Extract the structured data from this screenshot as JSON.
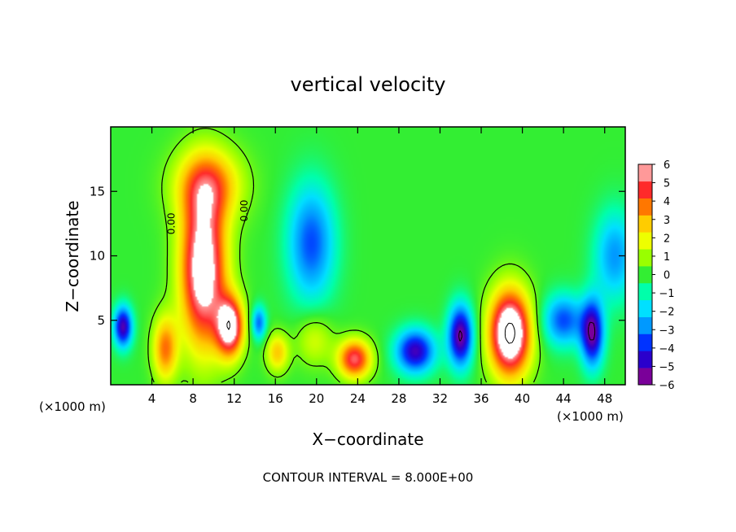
{
  "chart_data": {
    "type": "heatmap",
    "title": "vertical velocity",
    "xlabel": "X−coordinate",
    "ylabel": "Z−coordinate",
    "x_unit_left": "(×1000 m)",
    "x_unit_right": "(×1000 m)",
    "xlim": [
      0,
      50
    ],
    "ylim": [
      0,
      20
    ],
    "x_ticks": [
      4,
      8,
      12,
      16,
      20,
      24,
      28,
      32,
      36,
      40,
      44,
      48
    ],
    "y_ticks": [
      5,
      10,
      15
    ],
    "colorbar": {
      "min": -6,
      "max": 6,
      "ticks": [
        6,
        5,
        4,
        3,
        2,
        1,
        0,
        -1,
        -2,
        -3,
        -4,
        -5,
        -6
      ],
      "tick_labels": [
        "6",
        "5",
        "4",
        "3",
        "2",
        "1",
        "0",
        "−1",
        "−2",
        "−3",
        "−4",
        "−5",
        "−6"
      ],
      "colors": [
        "#7a0099",
        "#2a00cc",
        "#0033ff",
        "#0099ff",
        "#00e0ff",
        "#00ffaa",
        "#33ee33",
        "#99ff00",
        "#eeff00",
        "#ffcc00",
        "#ff7700",
        "#ff2a2a",
        "#ff9999"
      ]
    },
    "contour_label": "0.00",
    "features": [
      {
        "x": 1.2,
        "z": 4.5,
        "sx": 0.9,
        "sz": 1.6,
        "value": -5.5
      },
      {
        "x": 5.3,
        "z": 2.8,
        "sx": 1.2,
        "sz": 2.5,
        "value": 4.0
      },
      {
        "x": 9.0,
        "z": 9.0,
        "sx": 2.2,
        "sz": 6.0,
        "value": 7.5
      },
      {
        "x": 9.5,
        "z": 15.5,
        "sx": 3.2,
        "sz": 2.8,
        "value": 3.8
      },
      {
        "x": 11.6,
        "z": 4.5,
        "sx": 1.3,
        "sz": 2.3,
        "value": 7.0
      },
      {
        "x": 14.4,
        "z": 4.8,
        "sx": 0.7,
        "sz": 1.3,
        "value": -3.5
      },
      {
        "x": 16.2,
        "z": 2.5,
        "sx": 1.1,
        "sz": 1.5,
        "value": 3.0
      },
      {
        "x": 19.5,
        "z": 11.0,
        "sx": 2.3,
        "sz": 4.5,
        "value": -3.8
      },
      {
        "x": 19.8,
        "z": 3.5,
        "sx": 1.8,
        "sz": 2.0,
        "value": 1.8
      },
      {
        "x": 23.7,
        "z": 2.0,
        "sx": 1.6,
        "sz": 1.5,
        "value": 5.5
      },
      {
        "x": 29.6,
        "z": 2.6,
        "sx": 1.9,
        "sz": 1.7,
        "value": -5.3
      },
      {
        "x": 34.0,
        "z": 3.8,
        "sx": 1.2,
        "sz": 2.4,
        "value": -6.0
      },
      {
        "x": 38.8,
        "z": 4.0,
        "sx": 2.0,
        "sz": 3.3,
        "value": 8.5
      },
      {
        "x": 44.0,
        "z": 5.0,
        "sx": 2.0,
        "sz": 2.0,
        "value": -3.8
      },
      {
        "x": 46.8,
        "z": 4.0,
        "sx": 1.1,
        "sz": 2.6,
        "value": -5.8
      },
      {
        "x": 49.0,
        "z": 10.0,
        "sx": 2.0,
        "sz": 3.5,
        "value": -3.0
      }
    ],
    "grid": false
  },
  "footer": "CONTOUR INTERVAL = 8.000E+00"
}
